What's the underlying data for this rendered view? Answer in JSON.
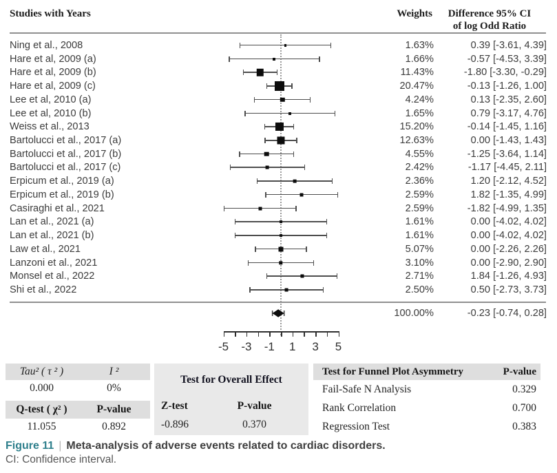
{
  "header": {
    "studies_col": "Studies with Years",
    "weights_col": "Weights",
    "difference_col_line1": "Difference 95% CI",
    "difference_col_line2": "of log Odd Ratio"
  },
  "chart_data": {
    "type": "forest",
    "effect_measure": "Difference of log Odd Ratio",
    "x_axis": {
      "min": -5,
      "max": 5,
      "tick_step": 1,
      "labeled_ticks": [
        -5,
        -3,
        -1,
        1,
        3,
        5
      ],
      "reference_line": 0
    },
    "studies": [
      {
        "label": "Ning et al., 2008",
        "weight_pct": 1.63,
        "est": 0.39,
        "lo": -3.61,
        "hi": 4.39
      },
      {
        "label": "Hare et al, 2009 (a)",
        "weight_pct": 1.66,
        "est": -0.57,
        "lo": -4.53,
        "hi": 3.39
      },
      {
        "label": "Hare et al, 2009 (b)",
        "weight_pct": 11.43,
        "est": -1.8,
        "lo": -3.3,
        "hi": -0.29
      },
      {
        "label": "Hare et al, 2009 (c)",
        "weight_pct": 20.47,
        "est": -0.13,
        "lo": -1.26,
        "hi": 1.0
      },
      {
        "label": "Lee et al, 2010 (a)",
        "weight_pct": 4.24,
        "est": 0.13,
        "lo": -2.35,
        "hi": 2.6
      },
      {
        "label": "Lee et al, 2010 (b)",
        "weight_pct": 1.65,
        "est": 0.79,
        "lo": -3.17,
        "hi": 4.76
      },
      {
        "label": "Weiss et al., 2013",
        "weight_pct": 15.2,
        "est": -0.14,
        "lo": -1.45,
        "hi": 1.16
      },
      {
        "label": "Bartolucci et al., 2017 (a)",
        "weight_pct": 12.63,
        "est": 0.0,
        "lo": -1.43,
        "hi": 1.43
      },
      {
        "label": "Bartolucci et al., 2017 (b)",
        "weight_pct": 4.55,
        "est": -1.25,
        "lo": -3.64,
        "hi": 1.14
      },
      {
        "label": "Bartolucci et al., 2017 (c)",
        "weight_pct": 2.42,
        "est": -1.17,
        "lo": -4.45,
        "hi": 2.11
      },
      {
        "label": "Erpicum et al., 2019 (a)",
        "weight_pct": 2.36,
        "est": 1.2,
        "lo": -2.12,
        "hi": 4.52
      },
      {
        "label": "Erpicum et al., 2019 (b)",
        "weight_pct": 2.59,
        "est": 1.82,
        "lo": -1.35,
        "hi": 4.99
      },
      {
        "label": "Casiraghi et al., 2021",
        "weight_pct": 2.59,
        "est": -1.82,
        "lo": -4.99,
        "hi": 1.35
      },
      {
        "label": "Lan et al., 2021 (a)",
        "weight_pct": 1.61,
        "est": 0.0,
        "lo": -4.02,
        "hi": 4.02
      },
      {
        "label": "Lan et al., 2021 (b)",
        "weight_pct": 1.61,
        "est": 0.0,
        "lo": -4.02,
        "hi": 4.02
      },
      {
        "label": "Law et al., 2021",
        "weight_pct": 5.07,
        "est": 0.0,
        "lo": -2.26,
        "hi": 2.26
      },
      {
        "label": "Lanzoni et al., 2021",
        "weight_pct": 3.1,
        "est": 0.0,
        "lo": -2.9,
        "hi": 2.9
      },
      {
        "label": "Monsel et al., 2022",
        "weight_pct": 2.71,
        "est": 1.84,
        "lo": -1.26,
        "hi": 4.93
      },
      {
        "label": "Shi et al., 2022",
        "weight_pct": 2.5,
        "est": 0.5,
        "lo": -2.73,
        "hi": 3.73
      }
    ],
    "summary": {
      "weight_pct": 100.0,
      "est": -0.23,
      "lo": -0.74,
      "hi": 0.28
    }
  },
  "stats": {
    "heterogeneity": {
      "tau2_label": "Tau² ( τ ² )",
      "i2_label": "I ²",
      "tau2": "0.000",
      "i2": "0%",
      "qtest_label": "Q-test ( χ² )",
      "pvalue_label": "P-value",
      "qtest": "11.055",
      "q_pvalue": "0.892"
    },
    "overall_effect": {
      "title": "Test for Overall Effect",
      "ztest_label": "Z-test",
      "pvalue_label": "P-value",
      "z": "-0.896",
      "p": "0.370"
    },
    "funnel": {
      "title": "Test for Funnel Plot Asymmetry",
      "pvalue_label": "P-value",
      "rows": [
        {
          "name": "Fail-Safe N Analysis",
          "p": "0.329"
        },
        {
          "name": "Rank Correlation",
          "p": "0.700"
        },
        {
          "name": "Regression Test",
          "p": "0.383"
        }
      ]
    }
  },
  "caption": {
    "figure_label": "Figure 11",
    "separator": "|",
    "title": "Meta-analysis of adverse events related to cardiac disorders.",
    "note": "CI: Confidence interval."
  }
}
